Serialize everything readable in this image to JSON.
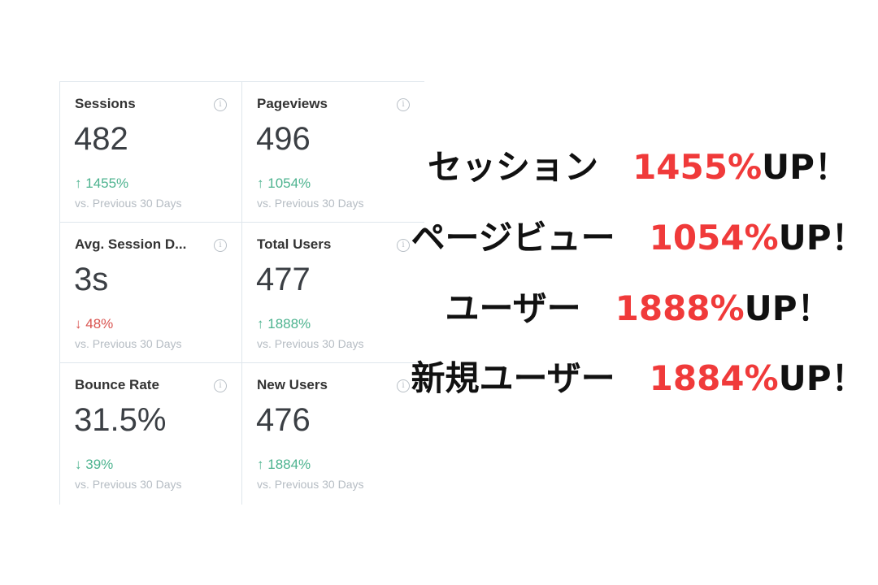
{
  "cards": [
    {
      "title": "Sessions",
      "value": "482",
      "arrow": "↑",
      "change": "1455%",
      "direction": "up",
      "sub": "vs. Previous 30 Days"
    },
    {
      "title": "Pageviews",
      "value": "496",
      "arrow": "↑",
      "change": "1054%",
      "direction": "up",
      "sub": "vs. Previous 30 Days"
    },
    {
      "title": "Avg. Session D...",
      "value": "3s",
      "arrow": "↓",
      "change": "48%",
      "direction": "down",
      "sub": "vs. Previous 30 Days"
    },
    {
      "title": "Total Users",
      "value": "477",
      "arrow": "↑",
      "change": "1888%",
      "direction": "up",
      "sub": "vs. Previous 30 Days"
    },
    {
      "title": "Bounce Rate",
      "value": "31.5%",
      "arrow": "↓",
      "change": "39%",
      "direction": "up",
      "sub": "vs. Previous 30 Days"
    },
    {
      "title": "New Users",
      "value": "476",
      "arrow": "↑",
      "change": "1884%",
      "direction": "up",
      "sub": "vs. Previous 30 Days"
    }
  ],
  "info_icon": "info-circle-icon",
  "colors": {
    "up": "#4db38f",
    "down": "#d9534f",
    "highlight": "#f03a3a"
  },
  "overlay": [
    {
      "label": "セッション　",
      "pct": "1455%",
      "suffix": "UP！"
    },
    {
      "label": "ページビュー　",
      "pct": "1054%",
      "suffix": "UP！"
    },
    {
      "label": "ユーザー　",
      "pct": "1888%",
      "suffix": "UP！"
    },
    {
      "label": "新規ユーザー　",
      "pct": "1884%",
      "suffix": "UP！"
    }
  ]
}
